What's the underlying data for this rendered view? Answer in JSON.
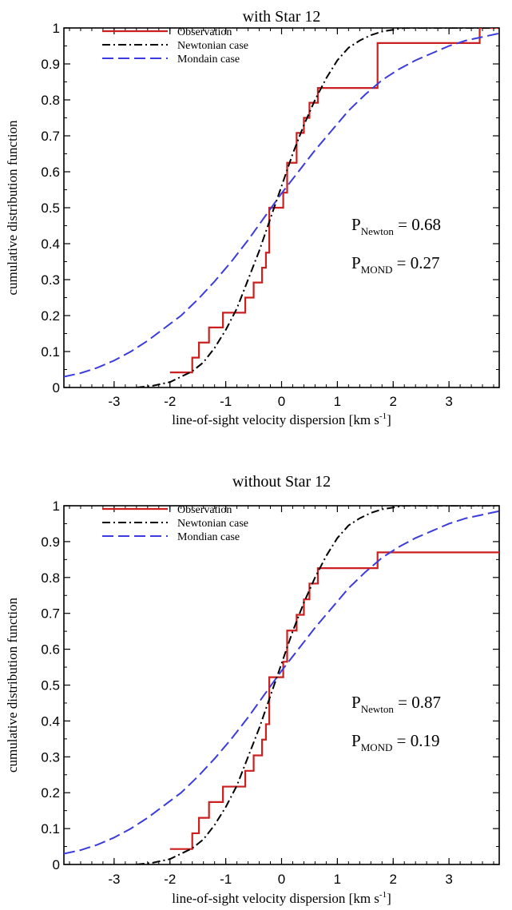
{
  "chart_data": [
    {
      "type": "line",
      "title": "with Star 12",
      "xlabel_main": "line-of-sight velocity dispersion [km s",
      "xlabel_sup": "-1",
      "xlabel_tail": "]",
      "ylabel": "cumulative distribution function",
      "xlim": [
        -3.9,
        3.9
      ],
      "ylim": [
        0,
        1
      ],
      "xticks": [
        -3,
        -2,
        -1,
        0,
        1,
        2,
        3
      ],
      "yticks": [
        0,
        0.1,
        0.2,
        0.3,
        0.4,
        0.5,
        0.6,
        0.7,
        0.8,
        0.9,
        1
      ],
      "ytick_labels": [
        "0",
        "0.1",
        "0.2",
        "0.3",
        "0.4",
        "0.5",
        "0.6",
        "0.7",
        "0.8",
        "0.9",
        "1"
      ],
      "grid": false,
      "legend_position": "top-left",
      "annotations": {
        "p_newton_main": "P",
        "p_newton_sub": "Newton",
        "p_newton_val": " = 0.68",
        "p_mond_main": "P",
        "p_mond_sub": "MOND",
        "p_mond_val": " = 0.27"
      },
      "series": [
        {
          "name": "Observation",
          "style": "step",
          "color": "#cc1f1f",
          "x": [
            -2.0,
            -1.6,
            -1.48,
            -1.3,
            -1.05,
            -0.65,
            -0.5,
            -0.35,
            -0.28,
            -0.22,
            0.03,
            0.1,
            0.27,
            0.4,
            0.5,
            0.65,
            1.72,
            3.55
          ],
          "y": [
            0.042,
            0.083,
            0.125,
            0.167,
            0.208,
            0.25,
            0.292,
            0.333,
            0.375,
            0.5,
            0.542,
            0.625,
            0.708,
            0.75,
            0.792,
            0.833,
            0.958,
            1.0
          ]
        },
        {
          "name": "Newtonian case",
          "style": "dashdot",
          "color": "#000000",
          "x": [
            -2.6,
            -2.3,
            -2.0,
            -1.8,
            -1.6,
            -1.4,
            -1.2,
            -1.0,
            -0.8,
            -0.6,
            -0.4,
            -0.2,
            0.0,
            0.2,
            0.4,
            0.6,
            0.8,
            1.0,
            1.2,
            1.4,
            1.6,
            1.8,
            2.0,
            2.2,
            2.4,
            3.9
          ],
          "y": [
            0.0,
            0.005,
            0.015,
            0.03,
            0.045,
            0.07,
            0.11,
            0.16,
            0.22,
            0.3,
            0.38,
            0.47,
            0.56,
            0.65,
            0.73,
            0.8,
            0.86,
            0.91,
            0.945,
            0.965,
            0.98,
            0.99,
            0.995,
            1.0,
            1.0,
            1.0
          ]
        },
        {
          "name": "Mondain case",
          "style": "dashed",
          "color": "#3b3bdf",
          "x": [
            -3.9,
            -3.6,
            -3.3,
            -3.0,
            -2.7,
            -2.4,
            -2.1,
            -1.8,
            -1.5,
            -1.2,
            -0.9,
            -0.6,
            -0.3,
            0.0,
            0.3,
            0.6,
            0.9,
            1.2,
            1.5,
            1.8,
            2.1,
            2.4,
            2.7,
            3.0,
            3.3,
            3.6,
            3.9
          ],
          "y": [
            0.03,
            0.04,
            0.055,
            0.075,
            0.1,
            0.13,
            0.165,
            0.2,
            0.245,
            0.295,
            0.35,
            0.41,
            0.475,
            0.54,
            0.6,
            0.66,
            0.715,
            0.77,
            0.815,
            0.855,
            0.885,
            0.91,
            0.93,
            0.95,
            0.965,
            0.975,
            0.985
          ]
        }
      ]
    },
    {
      "type": "line",
      "title": "without Star 12",
      "xlabel_main": "line-of-sight velocity dispersion [km s",
      "xlabel_sup": "-1",
      "xlabel_tail": "]",
      "ylabel": "cumulative distribution function",
      "xlim": [
        -3.9,
        3.9
      ],
      "ylim": [
        0,
        1
      ],
      "xticks": [
        -3,
        -2,
        -1,
        0,
        1,
        2,
        3
      ],
      "yticks": [
        0,
        0.1,
        0.2,
        0.3,
        0.4,
        0.5,
        0.6,
        0.7,
        0.8,
        0.9,
        1
      ],
      "ytick_labels": [
        "0",
        "0.1",
        "0.2",
        "0.3",
        "0.4",
        "0.5",
        "0.6",
        "0.7",
        "0.8",
        "0.9",
        "1"
      ],
      "grid": false,
      "legend_position": "top-left",
      "annotations": {
        "p_newton_main": "P",
        "p_newton_sub": "Newton",
        "p_newton_val": " = 0.87",
        "p_mond_main": "P",
        "p_mond_sub": "MOND",
        "p_mond_val": " = 0.19"
      },
      "series": [
        {
          "name": "Observation",
          "style": "step",
          "color": "#cc1f1f",
          "x": [
            -2.0,
            -1.6,
            -1.48,
            -1.3,
            -1.05,
            -0.65,
            -0.5,
            -0.35,
            -0.28,
            -0.22,
            0.03,
            0.1,
            0.27,
            0.4,
            0.5,
            0.65,
            1.72
          ],
          "y": [
            0.043,
            0.087,
            0.13,
            0.174,
            0.217,
            0.261,
            0.304,
            0.348,
            0.391,
            0.522,
            0.565,
            0.652,
            0.696,
            0.739,
            0.783,
            0.826,
            0.87
          ]
        },
        {
          "name": "Newtonian case",
          "style": "dashdot",
          "color": "#000000",
          "x": [
            -2.6,
            -2.3,
            -2.0,
            -1.8,
            -1.6,
            -1.4,
            -1.2,
            -1.0,
            -0.8,
            -0.6,
            -0.4,
            -0.2,
            0.0,
            0.2,
            0.4,
            0.6,
            0.8,
            1.0,
            1.2,
            1.4,
            1.6,
            1.8,
            2.0,
            2.2,
            2.4,
            3.9
          ],
          "y": [
            0.0,
            0.005,
            0.015,
            0.03,
            0.045,
            0.07,
            0.11,
            0.16,
            0.22,
            0.3,
            0.38,
            0.47,
            0.56,
            0.65,
            0.73,
            0.8,
            0.86,
            0.91,
            0.945,
            0.965,
            0.98,
            0.99,
            0.995,
            1.0,
            1.0,
            1.0
          ]
        },
        {
          "name": "Mondian case",
          "style": "dashed",
          "color": "#3b3bdf",
          "x": [
            -3.9,
            -3.6,
            -3.3,
            -3.0,
            -2.7,
            -2.4,
            -2.1,
            -1.8,
            -1.5,
            -1.2,
            -0.9,
            -0.6,
            -0.3,
            0.0,
            0.3,
            0.6,
            0.9,
            1.2,
            1.5,
            1.8,
            2.1,
            2.4,
            2.7,
            3.0,
            3.3,
            3.6,
            3.9
          ],
          "y": [
            0.03,
            0.04,
            0.055,
            0.075,
            0.1,
            0.13,
            0.165,
            0.2,
            0.245,
            0.295,
            0.35,
            0.41,
            0.475,
            0.54,
            0.6,
            0.66,
            0.715,
            0.77,
            0.815,
            0.855,
            0.885,
            0.91,
            0.93,
            0.95,
            0.965,
            0.975,
            0.985
          ]
        }
      ]
    }
  ]
}
